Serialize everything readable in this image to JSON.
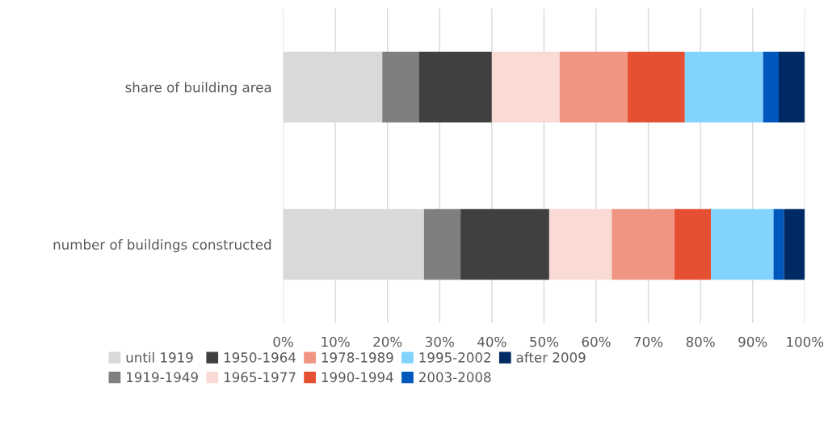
{
  "chart_data": {
    "type": "bar",
    "orientation": "horizontal",
    "stacked": true,
    "categories": [
      "share of building area",
      "number of buildings constructed"
    ],
    "series": [
      {
        "name": "until 1919",
        "color": "#d9d9d9",
        "values": [
          19,
          27
        ]
      },
      {
        "name": "1919-1949",
        "color": "#7f7f7f",
        "values": [
          7,
          7
        ]
      },
      {
        "name": "1950-1964",
        "color": "#404040",
        "values": [
          14,
          17
        ]
      },
      {
        "name": "1965-1977",
        "color": "#f9dad5",
        "values": [
          13,
          12
        ]
      },
      {
        "name": "1978-1989",
        "color": "#f19583",
        "values": [
          13,
          12
        ]
      },
      {
        "name": "1990-1994",
        "color": "#e54f32",
        "values": [
          11,
          7
        ]
      },
      {
        "name": "1995-2002",
        "color": "#83d3ff",
        "values": [
          15,
          12
        ]
      },
      {
        "name": "2003-2008",
        "color": "#0057bb",
        "values": [
          3,
          2
        ]
      },
      {
        "name": "after 2009",
        "color": "#002a64",
        "values": [
          5,
          4
        ]
      }
    ],
    "xlim": [
      0,
      100
    ],
    "xticks": [
      {
        "value": 0,
        "label": "0%"
      },
      {
        "value": 10,
        "label": "10%"
      },
      {
        "value": 20,
        "label": "20%"
      },
      {
        "value": 30,
        "label": "30%"
      },
      {
        "value": 40,
        "label": "40%"
      },
      {
        "value": 50,
        "label": "50%"
      },
      {
        "value": 60,
        "label": "60%"
      },
      {
        "value": 70,
        "label": "70%"
      },
      {
        "value": 80,
        "label": "80%"
      },
      {
        "value": 90,
        "label": "90%"
      },
      {
        "value": 100,
        "label": "100%"
      }
    ],
    "grid": "x",
    "legend": "bottom"
  }
}
